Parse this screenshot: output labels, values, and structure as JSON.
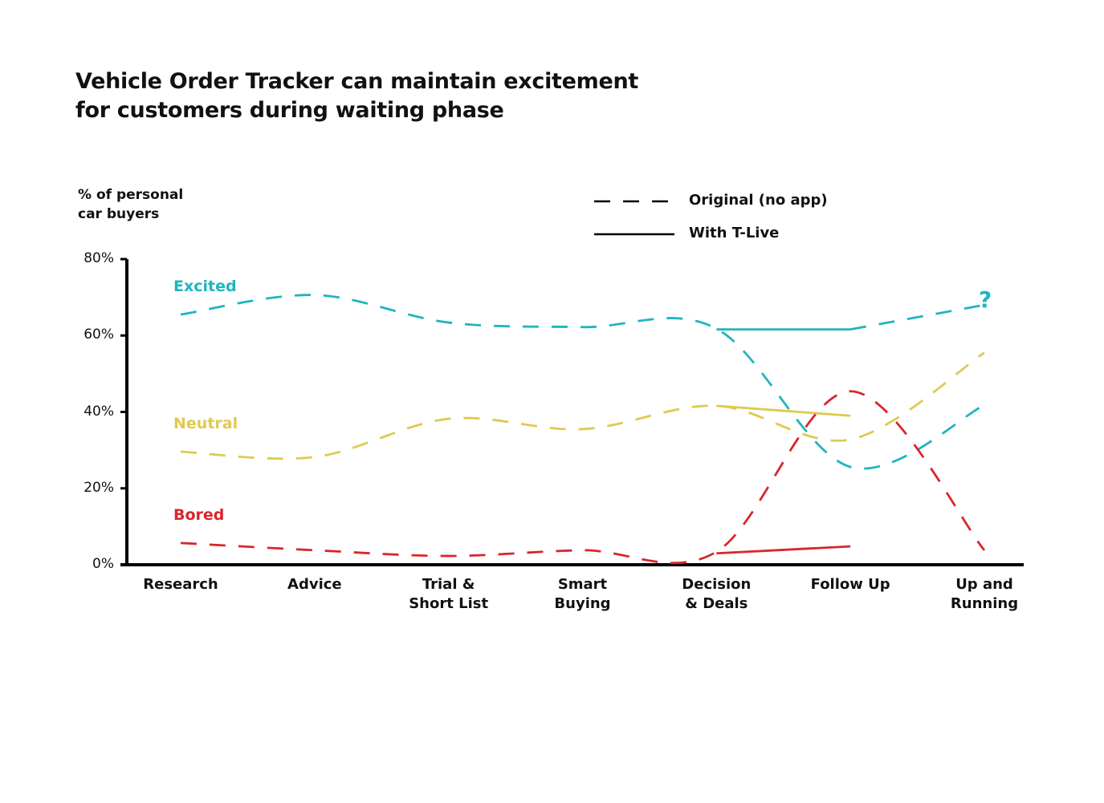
{
  "chart_data": {
    "type": "line",
    "title": "Vehicle Order Tracker can maintain excitement\nfor customers during waiting phase",
    "y_label": "% of personal\ncar buyers",
    "categories": [
      "Research",
      "Advice",
      "Trial &\nShort List",
      "Smart\nBuying",
      "Decision\n& Deals",
      "Follow Up",
      "Up and\nRunning"
    ],
    "ylim": [
      0,
      80
    ],
    "yticks": [
      {
        "value": 0,
        "label": "0%"
      },
      {
        "value": 20,
        "label": "20%"
      },
      {
        "value": 40,
        "label": "40%"
      },
      {
        "value": 60,
        "label": "60%"
      },
      {
        "value": 80,
        "label": "80%"
      }
    ],
    "legend": [
      {
        "label": "Original (no app)",
        "dashed": true
      },
      {
        "label": "With T-Live",
        "dashed": false
      }
    ],
    "series": [
      {
        "name": "Excited",
        "color": "#1fb5bf",
        "values": [
          65.5,
          70.6,
          63.4,
          62.2,
          61.8,
          25.6,
          41.8
        ],
        "t_live_values": [
          null,
          null,
          null,
          null,
          61.6,
          61.6,
          null
        ],
        "t_live_projection": [
          null,
          null,
          null,
          null,
          null,
          61.6,
          68
        ]
      },
      {
        "name": "Neutral",
        "color": "#e0c94f",
        "values": [
          29.6,
          28.2,
          38.2,
          35.5,
          41.6,
          32.8,
          55.5
        ],
        "t_live_values": [
          null,
          null,
          null,
          null,
          41.6,
          39,
          null
        ]
      },
      {
        "name": "Bored",
        "color": "#d9262c",
        "values": [
          5.7,
          3.8,
          2.3,
          3.8,
          3.4,
          45.4,
          3.8
        ],
        "t_live_values": [
          null,
          null,
          null,
          null,
          3,
          4.8,
          null
        ]
      }
    ],
    "annotation": {
      "text": "?",
      "category": 6,
      "value": 70,
      "color": "#1fb5bf"
    }
  }
}
